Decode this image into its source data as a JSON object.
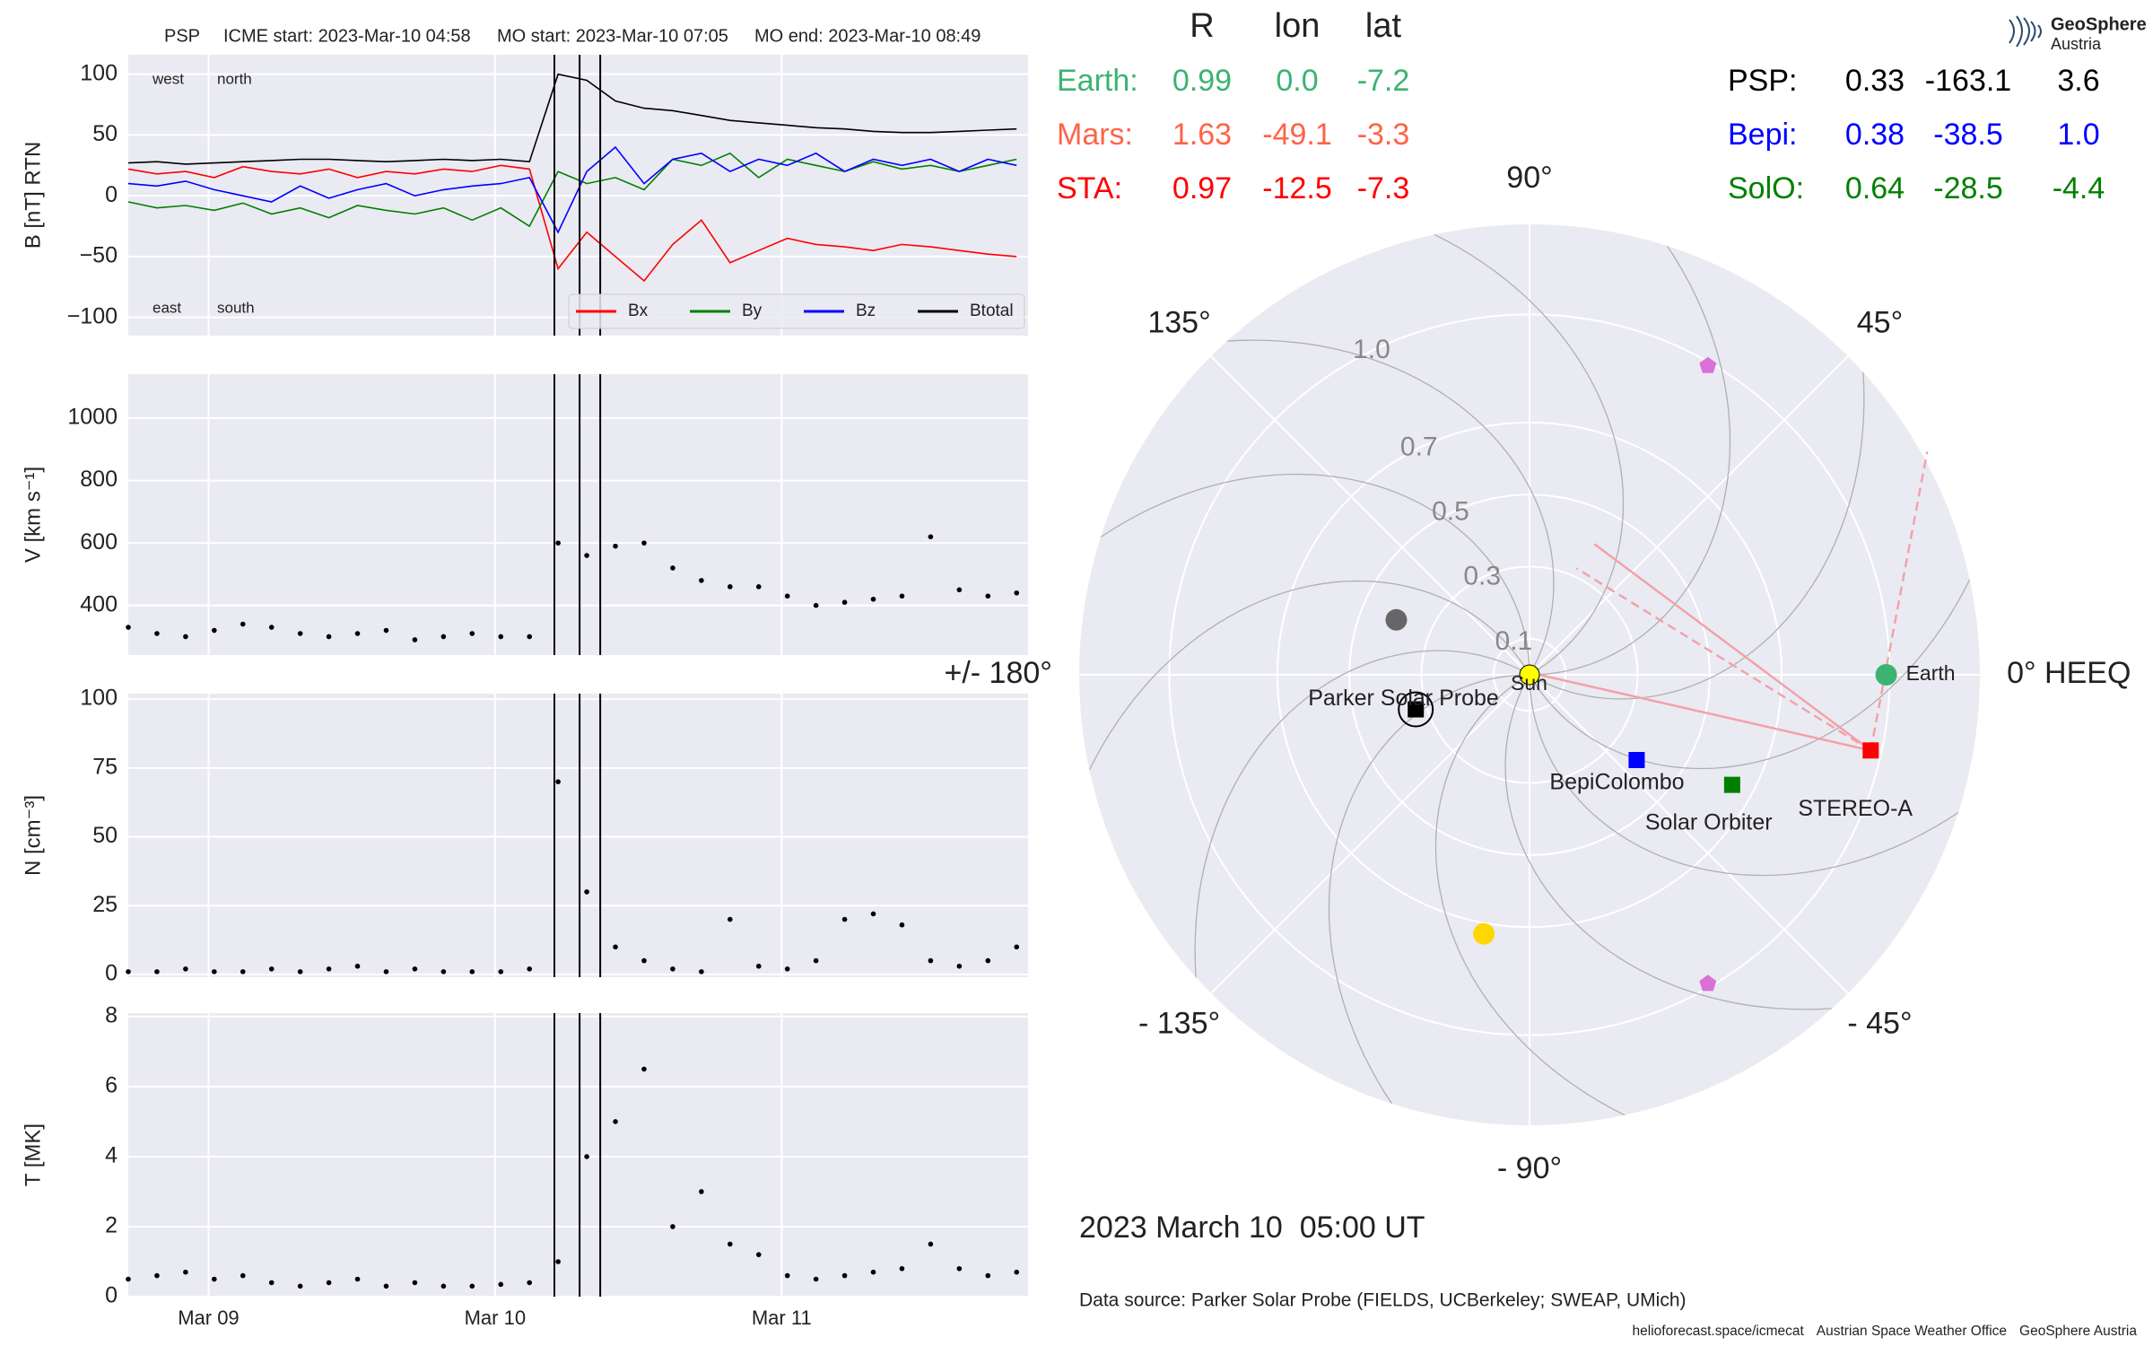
{
  "chart_data": [
    {
      "type": "line",
      "title": [
        "PSP",
        "ICME start: 2023-Mar-10 04:58",
        "MO start: 2023-Mar-10 07:05",
        "MO end: 2023-Mar-10 08:49"
      ],
      "ylabel": "B [nT] RTN",
      "x": [
        8.72,
        8.82,
        8.92,
        9.02,
        9.12,
        9.22,
        9.32,
        9.42,
        9.52,
        9.62,
        9.72,
        9.82,
        9.92,
        10.02,
        10.12,
        10.22,
        10.32,
        10.42,
        10.52,
        10.62,
        10.72,
        10.82,
        10.92,
        11.02,
        11.12,
        11.22,
        11.32,
        11.42,
        11.52,
        11.62,
        11.72,
        11.82
      ],
      "series": [
        {
          "name": "Bx",
          "color": "#ff0000",
          "values": [
            22,
            18,
            20,
            15,
            24,
            20,
            18,
            22,
            15,
            20,
            18,
            22,
            20,
            25,
            22,
            -60,
            -30,
            -50,
            -70,
            -40,
            -20,
            -55,
            -45,
            -35,
            -40,
            -42,
            -45,
            -40,
            -42,
            -45,
            -48,
            -50
          ]
        },
        {
          "name": "By",
          "color": "#008000",
          "values": [
            -5,
            -10,
            -8,
            -12,
            -6,
            -15,
            -10,
            -18,
            -8,
            -12,
            -15,
            -10,
            -20,
            -10,
            -25,
            20,
            10,
            15,
            5,
            30,
            25,
            35,
            15,
            30,
            25,
            20,
            28,
            22,
            25,
            20,
            25,
            30
          ]
        },
        {
          "name": "Bz",
          "color": "#0000ff",
          "values": [
            10,
            8,
            12,
            5,
            0,
            -5,
            8,
            -2,
            5,
            10,
            0,
            5,
            8,
            10,
            15,
            -30,
            20,
            40,
            10,
            30,
            35,
            20,
            30,
            25,
            35,
            20,
            30,
            25,
            30,
            20,
            30,
            25
          ]
        },
        {
          "name": "Btotal",
          "color": "#000000",
          "values": [
            27,
            28,
            26,
            27,
            28,
            29,
            30,
            30,
            29,
            28,
            29,
            30,
            29,
            30,
            28,
            100,
            95,
            78,
            72,
            70,
            66,
            62,
            60,
            58,
            56,
            55,
            53,
            52,
            52,
            53,
            54,
            55
          ]
        }
      ],
      "xlim": [
        8.72,
        11.86
      ],
      "ylim": [
        -115,
        116
      ],
      "yticks": [
        {
          "value": -100,
          "label": "−100"
        },
        {
          "value": -50,
          "label": "−50"
        },
        0,
        50,
        100
      ],
      "grid": true,
      "legend": "lower right",
      "event_lines": [
        10.207,
        10.295,
        10.367
      ],
      "annotations": [
        {
          "text": "west",
          "color": "#008000",
          "corner": "upper"
        },
        {
          "text": "north",
          "color": "#0000ff",
          "corner": "upper"
        },
        {
          "text": "east",
          "color": "#008000",
          "corner": "lower"
        },
        {
          "text": "south",
          "color": "#0000ff",
          "corner": "lower"
        }
      ]
    },
    {
      "type": "scatter",
      "ylabel": "V [km s⁻¹]",
      "color": "#000000",
      "x": [
        8.72,
        8.82,
        8.92,
        9.02,
        9.12,
        9.22,
        9.32,
        9.42,
        9.52,
        9.62,
        9.72,
        9.82,
        9.92,
        10.02,
        10.12,
        10.22,
        10.32,
        10.42,
        10.52,
        10.62,
        10.72,
        10.82,
        10.92,
        11.02,
        11.12,
        11.22,
        11.32,
        11.42,
        11.52,
        11.62,
        11.72,
        11.82
      ],
      "values": [
        330,
        310,
        300,
        320,
        340,
        330,
        310,
        300,
        310,
        320,
        290,
        300,
        310,
        300,
        300,
        600,
        560,
        590,
        600,
        520,
        480,
        460,
        460,
        430,
        400,
        410,
        420,
        430,
        620,
        450,
        430,
        440
      ],
      "xlim": [
        8.72,
        11.86
      ],
      "ylim": [
        241,
        1141
      ],
      "yticks": [
        400,
        600,
        800,
        1000
      ],
      "grid": true
    },
    {
      "type": "scatter",
      "ylabel": "N [cm⁻³]",
      "color": "#000000",
      "x": [
        8.72,
        8.82,
        8.92,
        9.02,
        9.12,
        9.22,
        9.32,
        9.42,
        9.52,
        9.62,
        9.72,
        9.82,
        9.92,
        10.02,
        10.12,
        10.22,
        10.32,
        10.42,
        10.52,
        10.62,
        10.72,
        10.82,
        10.92,
        11.02,
        11.12,
        11.22,
        11.32,
        11.42,
        11.52,
        11.62,
        11.72,
        11.82
      ],
      "values": [
        1,
        1,
        2,
        1,
        1,
        2,
        1,
        2,
        3,
        1,
        2,
        1,
        1,
        1,
        2,
        70,
        30,
        10,
        5,
        2,
        1,
        20,
        3,
        2,
        5,
        20,
        22,
        18,
        5,
        3,
        5,
        10
      ],
      "xlim": [
        8.72,
        11.86
      ],
      "ylim": [
        -1,
        102
      ],
      "yticks": [
        0,
        25,
        50,
        75,
        100
      ],
      "grid": true
    },
    {
      "type": "scatter",
      "ylabel": "T [MK]",
      "color": "#000000",
      "x": [
        8.72,
        8.82,
        8.92,
        9.02,
        9.12,
        9.22,
        9.32,
        9.42,
        9.52,
        9.62,
        9.72,
        9.82,
        9.92,
        10.02,
        10.12,
        10.22,
        10.32,
        10.42,
        10.52,
        10.62,
        10.72,
        10.82,
        10.92,
        11.02,
        11.12,
        11.22,
        11.32,
        11.42,
        11.52,
        11.62,
        11.72,
        11.82
      ],
      "values": [
        0.5,
        0.6,
        0.7,
        0.5,
        0.6,
        0.4,
        0.3,
        0.4,
        0.5,
        0.3,
        0.4,
        0.3,
        0.3,
        0.35,
        0.4,
        1,
        4,
        5,
        6.5,
        2,
        3,
        1.5,
        1.2,
        0.6,
        0.5,
        0.6,
        0.7,
        0.8,
        1.5,
        0.8,
        0.6,
        0.7
      ],
      "xlim": [
        8.72,
        11.86
      ],
      "ylim": [
        0,
        8.1
      ],
      "yticks": [
        0,
        2,
        4,
        6,
        8
      ],
      "xticks": [
        {
          "value": 9,
          "label": "Mar 09"
        },
        {
          "value": 10,
          "label": "Mar 10"
        },
        {
          "value": 11,
          "label": "Mar 11"
        }
      ],
      "grid": true
    },
    {
      "type": "polar",
      "rlim": [
        0,
        1.25
      ],
      "rticks": [
        0.1,
        0.3,
        0.5,
        0.7,
        {
          "value": 1,
          "label": "1.0"
        }
      ],
      "thetaticks": [
        {
          "value": 0,
          "label": "0° HEEQ"
        },
        {
          "value": 45,
          "label": "45°"
        },
        {
          "value": 90,
          "label": "90°"
        },
        {
          "value": 135,
          "label": "135°"
        },
        {
          "value": 180,
          "label": "+/- 180°"
        },
        {
          "value": -135,
          "label": "- 135°"
        },
        {
          "value": -90,
          "label": "- 90°"
        },
        {
          "value": -45,
          "label": "- 45°"
        }
      ],
      "table_header": [
        "R",
        "lon",
        "lat"
      ],
      "bodies": [
        {
          "table_label": "Earth:",
          "plot_label": "Earth",
          "r": 0.99,
          "lon": {
            "value": 0,
            "label": "0.0"
          },
          "lat": -7.2,
          "color": "#3cb371",
          "shape": "circle"
        },
        {
          "table_label": "Mars:",
          "r": 1.63,
          "lon": -49.1,
          "lat": -3.3,
          "color": "#ff6347"
        },
        {
          "table_label": "STA:",
          "plot_label": "STEREO-A",
          "r": 0.97,
          "lon": -12.5,
          "lat": -7.3,
          "color": "#ff0000",
          "shape": "square"
        },
        {
          "table_label": "PSP:",
          "plot_label": "Parker Solar Probe",
          "r": 0.33,
          "lon": -163.1,
          "lat": 3.6,
          "color": "#000000",
          "shape": "square-ring"
        },
        {
          "table_label": "Bepi:",
          "plot_label": "BepiColombo",
          "r": 0.38,
          "lon": -38.5,
          "lat": {
            "value": 1,
            "label": "1.0"
          },
          "color": "#0000ff",
          "shape": "square"
        },
        {
          "table_label": "SolO:",
          "plot_label": "Solar Orbiter",
          "r": 0.64,
          "lon": -28.5,
          "lat": -4.4,
          "color": "#008000",
          "shape": "square"
        }
      ],
      "sun": {
        "label": "Sun",
        "color": "#ffff00"
      },
      "markers": [
        {
          "r": 0.4,
          "lon": 157.6,
          "color": "#666666",
          "shape": "circle"
        },
        {
          "r": 0.73,
          "lon": -100,
          "color": "#ffd700",
          "shape": "circle"
        },
        {
          "r": 0.99,
          "lon": 60,
          "color": "#da70d6",
          "shape": "pentagon"
        },
        {
          "r": 0.99,
          "lon": -60,
          "color": "#da70d6",
          "shape": "pentagon"
        }
      ],
      "date": "2023 March 10  05:00 UT"
    }
  ],
  "source": "Data source: Parker Solar Probe (FIELDS, UCBerkeley; SWEAP, UMich)",
  "footer": [
    "helioforecast.space/icmecat",
    "Austrian Space Weather Office",
    "GeoSphere Austria"
  ],
  "logo": [
    "GeoSphere",
    "Austria"
  ]
}
